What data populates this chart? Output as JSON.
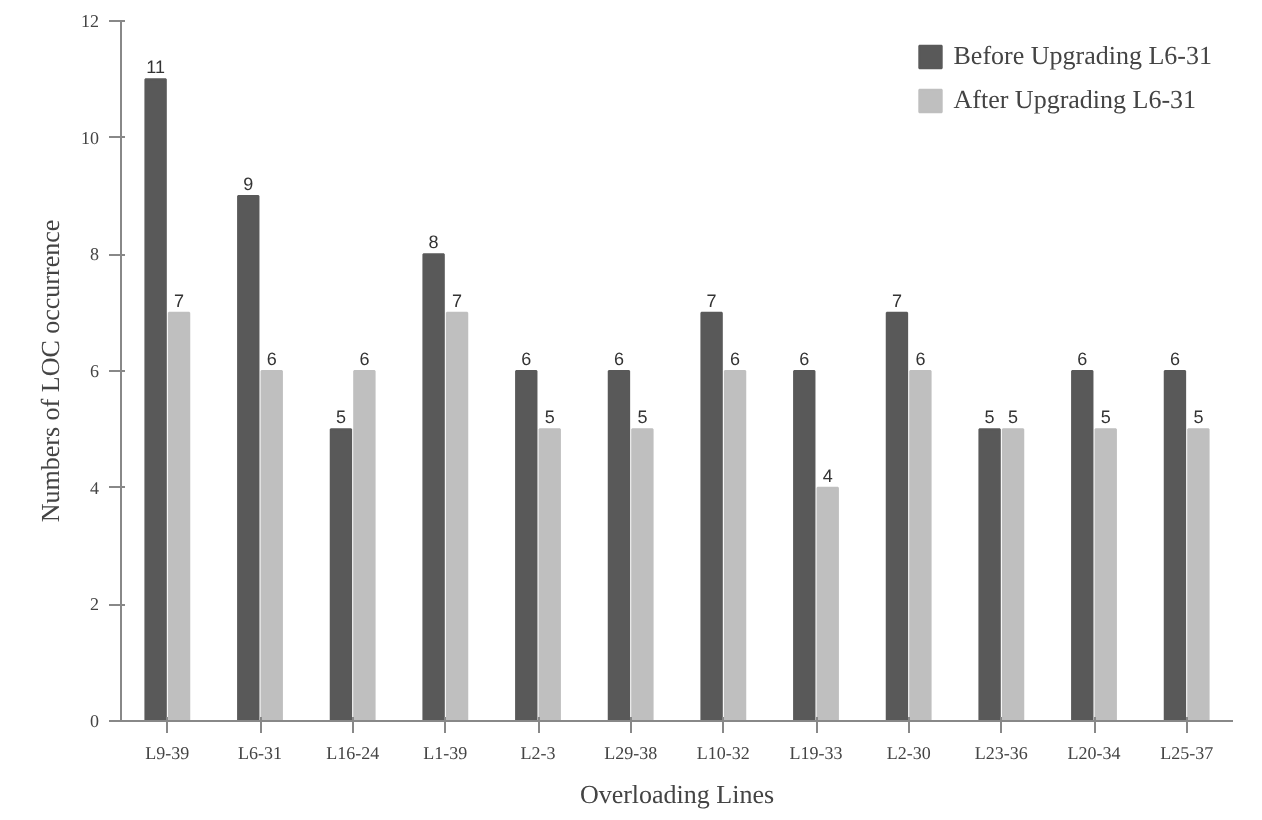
{
  "chart_data": {
    "type": "bar",
    "xlabel": "Overloading Lines",
    "ylabel": "Numbers of LOC occurrence",
    "categories": [
      "L9-39",
      "L6-31",
      "L16-24",
      "L1-39",
      "L2-3",
      "L29-38",
      "L10-32",
      "L19-33",
      "L2-30",
      "L23-36",
      "L20-34",
      "L25-37"
    ],
    "series": [
      {
        "name": "Before Upgrading L6-31",
        "color": "#595959",
        "values": [
          11,
          9,
          5,
          8,
          6,
          6,
          7,
          6,
          7,
          5,
          6,
          6
        ]
      },
      {
        "name": "After Upgrading L6-31",
        "color": "#bfbfbf",
        "values": [
          7,
          6,
          6,
          7,
          5,
          5,
          6,
          4,
          6,
          5,
          5,
          5
        ]
      }
    ],
    "ylim": [
      0,
      12
    ],
    "yticks": [
      0,
      2,
      4,
      6,
      8,
      10,
      12
    ],
    "grid": false,
    "legend": "top right",
    "data_labels": true
  }
}
